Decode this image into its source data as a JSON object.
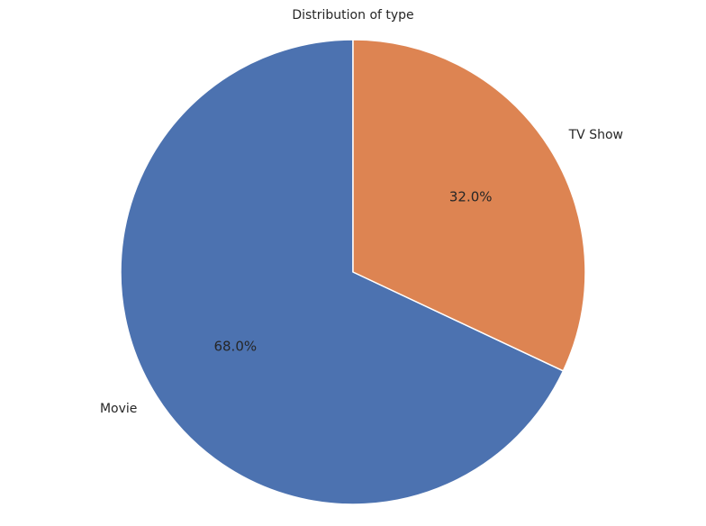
{
  "chart_data": {
    "type": "pie",
    "title": "Distribution of type",
    "categories": [
      "Movie",
      "TV Show"
    ],
    "values": [
      68.0,
      32.0
    ],
    "percent_labels": [
      "68.0%",
      "32.0%"
    ],
    "colors": [
      "#4c72b0",
      "#dd8452"
    ],
    "start_angle_deg": 90,
    "direction": "counterclockwise",
    "legend": "none"
  }
}
